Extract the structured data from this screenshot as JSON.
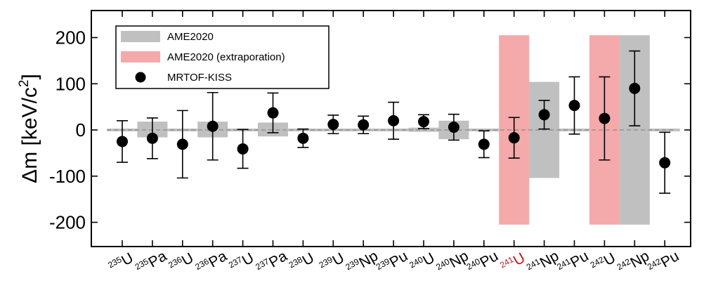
{
  "chart_data": {
    "type": "scatter",
    "ylabel": "Δm [keV/c²]",
    "ylabel_parts": {
      "main": "Δm [keV/c",
      "sup": "2",
      "close": "]"
    },
    "xlabel": "",
    "ylim": [
      -250,
      260
    ],
    "yticks": [
      -200,
      -100,
      0,
      100,
      200
    ],
    "ytick_labels": [
      "-200",
      "-100",
      "0",
      "100",
      "200"
    ],
    "grid": false,
    "legend_position": "top-left",
    "colors": {
      "ame": "#c0c0c0",
      "extrap": "#f4a9ab",
      "point": "#000000",
      "highlight_label": "#c8161d",
      "zero_line": "#888888"
    },
    "legend": [
      {
        "label": "AME2020",
        "kind": "band-gray"
      },
      {
        "label": "AME2020 (extraporation)",
        "kind": "band-pink"
      },
      {
        "label": "MRTOF-KISS",
        "kind": "point"
      }
    ],
    "nuclides": [
      {
        "mass": "235",
        "symbol": "U",
        "highlight": false,
        "value": -25,
        "err_low": 45,
        "err_high": 45,
        "band_low": -3,
        "band_high": 3,
        "band_kind": "ame"
      },
      {
        "mass": "235",
        "symbol": "Pa",
        "highlight": false,
        "value": -18,
        "err_low": 44,
        "err_high": 44,
        "band_low": -16,
        "band_high": 18,
        "band_kind": "ame"
      },
      {
        "mass": "236",
        "symbol": "U",
        "highlight": false,
        "value": -31,
        "err_low": 73,
        "err_high": 73,
        "band_low": -3,
        "band_high": 3,
        "band_kind": "ame"
      },
      {
        "mass": "236",
        "symbol": "Pa",
        "highlight": false,
        "value": 8,
        "err_low": 73,
        "err_high": 73,
        "band_low": -16,
        "band_high": 18,
        "band_kind": "ame"
      },
      {
        "mass": "237",
        "symbol": "U",
        "highlight": false,
        "value": -41,
        "err_low": 42,
        "err_high": 42,
        "band_low": -3,
        "band_high": 3,
        "band_kind": "ame"
      },
      {
        "mass": "237",
        "symbol": "Pa",
        "highlight": false,
        "value": 37,
        "err_low": 43,
        "err_high": 43,
        "band_low": -14,
        "band_high": 16,
        "band_kind": "ame"
      },
      {
        "mass": "238",
        "symbol": "U",
        "highlight": false,
        "value": -18,
        "err_low": 20,
        "err_high": 20,
        "band_low": -3,
        "band_high": 3,
        "band_kind": "ame"
      },
      {
        "mass": "239",
        "symbol": "U",
        "highlight": false,
        "value": 12,
        "err_low": 20,
        "err_high": 20,
        "band_low": -3,
        "band_high": 3,
        "band_kind": "ame"
      },
      {
        "mass": "239",
        "symbol": "Np",
        "highlight": false,
        "value": 11,
        "err_low": 19,
        "err_high": 19,
        "band_low": -3,
        "band_high": 3,
        "band_kind": "ame"
      },
      {
        "mass": "239",
        "symbol": "Pu",
        "highlight": false,
        "value": 20,
        "err_low": 40,
        "err_high": 40,
        "band_low": -3,
        "band_high": 3,
        "band_kind": "ame"
      },
      {
        "mass": "240",
        "symbol": "U",
        "highlight": false,
        "value": 18,
        "err_low": 15,
        "err_high": 15,
        "band_low": -4,
        "band_high": 5,
        "band_kind": "ame"
      },
      {
        "mass": "240",
        "symbol": "Np",
        "highlight": false,
        "value": 6,
        "err_low": 28,
        "err_high": 28,
        "band_low": -20,
        "band_high": 20,
        "band_kind": "ame"
      },
      {
        "mass": "240",
        "symbol": "Pu",
        "highlight": false,
        "value": -31,
        "err_low": 29,
        "err_high": 29,
        "band_low": -3,
        "band_high": 3,
        "band_kind": "ame"
      },
      {
        "mass": "241",
        "symbol": "U",
        "highlight": true,
        "value": -17,
        "err_low": 44,
        "err_high": 44,
        "band_low": -205,
        "band_high": 205,
        "band_kind": "extrap"
      },
      {
        "mass": "241",
        "symbol": "Np",
        "highlight": false,
        "value": 33,
        "err_low": 31,
        "err_high": 31,
        "band_low": -104,
        "band_high": 104,
        "band_kind": "ame"
      },
      {
        "mass": "241",
        "symbol": "Pu",
        "highlight": false,
        "value": 53,
        "err_low": 62,
        "err_high": 62,
        "band_low": -3,
        "band_high": 3,
        "band_kind": "ame"
      },
      {
        "mass": "242",
        "symbol": "U",
        "highlight": false,
        "value": 25,
        "err_low": 90,
        "err_high": 90,
        "band_low": -205,
        "band_high": 205,
        "band_kind": "extrap"
      },
      {
        "mass": "242",
        "symbol": "Np",
        "highlight": false,
        "value": 90,
        "err_low": 81,
        "err_high": 81,
        "band_low": -205,
        "band_high": 205,
        "band_kind": "ame"
      },
      {
        "mass": "242",
        "symbol": "Pu",
        "highlight": false,
        "value": -71,
        "err_low": 66,
        "err_high": 66,
        "band_low": -3,
        "band_high": 3,
        "band_kind": "ame"
      }
    ]
  }
}
